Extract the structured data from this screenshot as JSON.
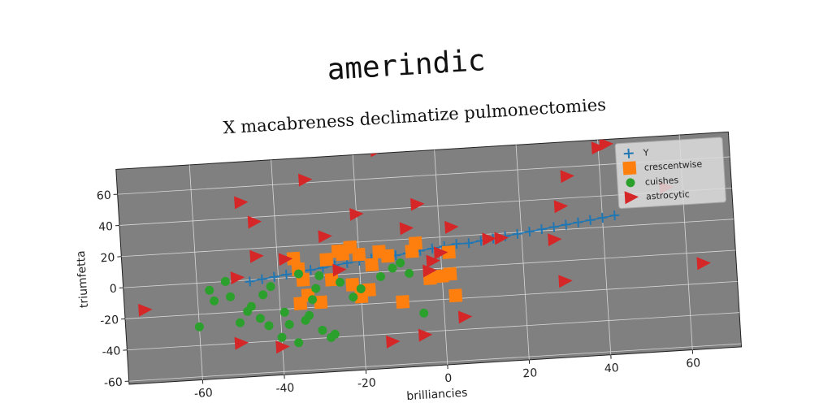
{
  "chart_data": {
    "type": "scatter",
    "suptitle": "amerindic",
    "title": "X macabreness declimatize pulmonectomies",
    "xlabel": "brilliancies",
    "ylabel": "triumfetta",
    "xlim": [
      -78,
      72
    ],
    "ylim": [
      -62,
      76
    ],
    "xticks": [
      -60,
      -40,
      -20,
      0,
      20,
      40,
      60
    ],
    "yticks": [
      -60,
      -40,
      -20,
      0,
      20,
      40,
      60
    ],
    "grid": true,
    "legend": "upper right",
    "series": [
      {
        "name": "Y",
        "color": "#1f77b4",
        "marker": "plus",
        "x": [
          -47,
          -44,
          -41,
          -38,
          -35,
          -32,
          -29,
          -26,
          -23,
          -20,
          -17,
          -14,
          -11,
          -8,
          -5,
          -2,
          1,
          4,
          7,
          10,
          13,
          16,
          19,
          22,
          25,
          28,
          31,
          34,
          37,
          40,
          43
        ],
        "values": [
          -1,
          0,
          1,
          2,
          3,
          4,
          5,
          6,
          7,
          8,
          9,
          10,
          10,
          11,
          12,
          13,
          14,
          15,
          15,
          16,
          17,
          18,
          19,
          20,
          21,
          22,
          23,
          24,
          25,
          26,
          27
        ]
      },
      {
        "name": "crescentwise",
        "color": "#ff7f0e",
        "marker": "square",
        "x": [
          -36,
          -35,
          -34,
          -33,
          -35,
          -30,
          -28,
          -25,
          -24,
          -22,
          -20,
          -22,
          -20,
          -18,
          -15,
          -13,
          -10,
          -7,
          -6,
          -3,
          0,
          2,
          2,
          3,
          -27,
          -17
        ],
        "values": [
          12,
          5,
          -2,
          -12,
          -17,
          -17,
          10,
          15,
          13,
          17,
          12,
          -7,
          -15,
          -11,
          13,
          10,
          -20,
          12,
          17,
          -6,
          -5,
          -4,
          10,
          -18,
          -3,
          5
        ]
      },
      {
        "name": "cuishes",
        "color": "#2ca02c",
        "marker": "circle",
        "x": [
          -60,
          -57,
          -56,
          -53,
          -52,
          -50,
          -48,
          -47,
          -45,
          -44,
          -43,
          -42,
          -40,
          -39,
          -38,
          -36,
          -35,
          -34,
          -32,
          -31,
          -30,
          -28,
          -27,
          -25,
          -22,
          -20,
          -15,
          -12,
          -10,
          -8,
          -5,
          -30,
          -33
        ],
        "values": [
          -28,
          -5,
          -12,
          0,
          -10,
          -27,
          -20,
          -17,
          -25,
          -10,
          -30,
          -5,
          -38,
          -22,
          -30,
          -42,
          2,
          -28,
          -15,
          -8,
          -35,
          -40,
          -38,
          -5,
          -15,
          -10,
          -3,
          2,
          5,
          -2,
          -28,
          0,
          -25
        ]
      },
      {
        "name": "astrocytic",
        "color": "#d62728",
        "marker": "triangle",
        "x": [
          -73,
          -50,
          -48,
          -45,
          -45,
          -50,
          -40,
          -38,
          -32,
          -28,
          -25,
          -20,
          -14,
          -13,
          -8,
          -5,
          -5,
          -2,
          0,
          3,
          5,
          12,
          15,
          28,
          30,
          30,
          32,
          40,
          42,
          56,
          64,
          -3
        ],
        "values": [
          -15,
          2,
          50,
          37,
          15,
          -40,
          -44,
          12,
          62,
          25,
          3,
          38,
          78,
          -45,
          27,
          -42,
          42,
          5,
          10,
          26,
          -32,
          17,
          17,
          14,
          35,
          -13,
          54,
          71,
          73,
          43,
          -7,
          -1
        ]
      }
    ]
  }
}
